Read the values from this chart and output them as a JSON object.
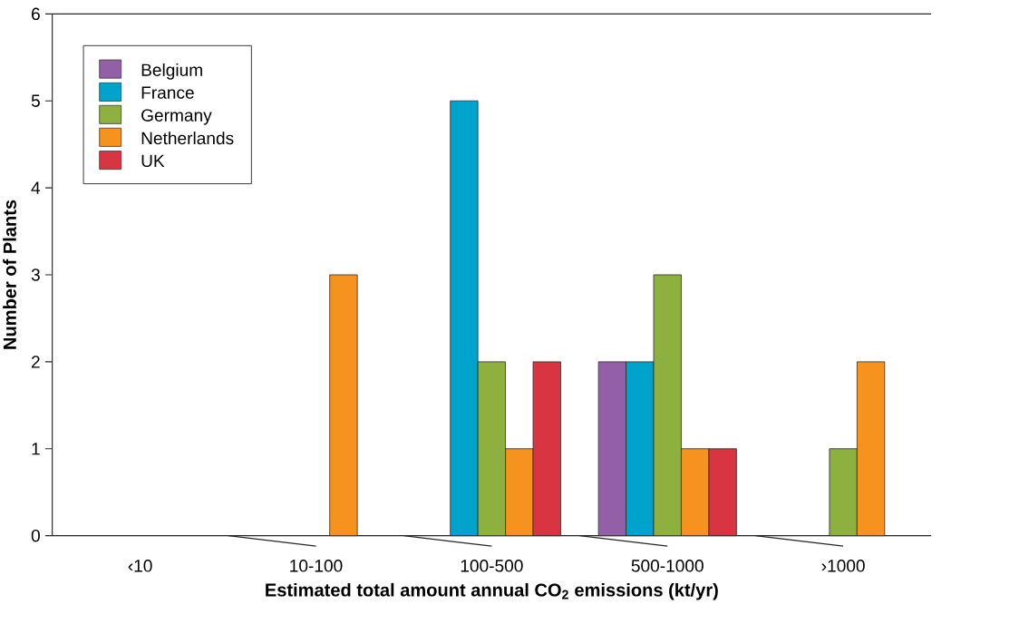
{
  "chart_data": {
    "type": "bar",
    "xlabel": "Estimated total amount annual CO$_{2}$ emissions (kt/yr)",
    "ylabel": "Number of Plants",
    "categories": [
      "‹10",
      "10-100",
      "100-500",
      "500-1000",
      "›1000"
    ],
    "series": [
      {
        "name": "Belgium",
        "color": "#9360a8",
        "values": [
          null,
          null,
          null,
          2,
          null
        ]
      },
      {
        "name": "France",
        "color": "#00a3cc",
        "values": [
          null,
          null,
          5,
          2,
          null
        ]
      },
      {
        "name": "Germany",
        "color": "#8db03f",
        "values": [
          null,
          null,
          2,
          3,
          1
        ]
      },
      {
        "name": "Netherlands",
        "color": "#f6921e",
        "values": [
          null,
          3,
          1,
          1,
          2
        ]
      },
      {
        "name": "UK",
        "color": "#d83442",
        "values": [
          null,
          null,
          2,
          1,
          null
        ]
      }
    ],
    "ylim": [
      0,
      6
    ],
    "yticks": [
      0,
      1,
      2,
      3,
      4,
      5,
      6
    ],
    "grid": false,
    "legend": "top left"
  }
}
